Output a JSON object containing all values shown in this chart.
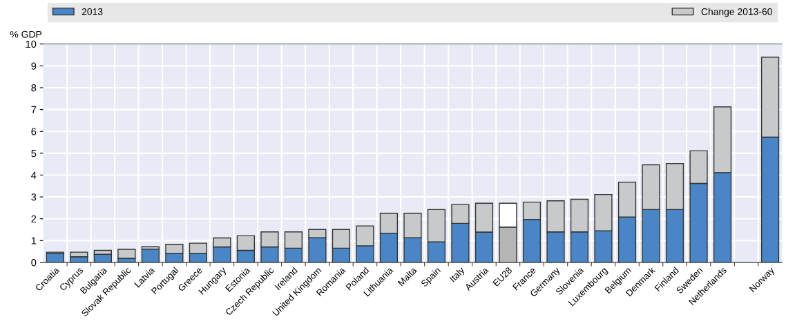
{
  "chart_data": {
    "type": "bar",
    "stacked": true,
    "ylabel": "% GDP",
    "categories": [
      "Croatia",
      "Cyprus",
      "Bulgaria",
      "Slovak Republic",
      "Latvia",
      "Portugal",
      "Greece",
      "Hungary",
      "Estonia",
      "Czech Republic",
      "Ireland",
      "United Kingdom",
      "Romania",
      "Poland",
      "Lithuania",
      "Malta",
      "Spain",
      "Italy",
      "Austria",
      "EU28",
      "France",
      "Germany",
      "Slovenia",
      "Luxembourg",
      "Belgium",
      "Denmark",
      "Finland",
      "Sweden",
      "Netherlands",
      null,
      "Norway"
    ],
    "series": [
      {
        "name": "2013",
        "color": "#4a86c5",
        "colors": [
          "#4a86c5",
          "#4a86c5",
          "#4a86c5",
          "#4a86c5",
          "#4a86c5",
          "#4a86c5",
          "#4a86c5",
          "#4a86c5",
          "#4a86c5",
          "#4a86c5",
          "#4a86c5",
          "#4a86c5",
          "#4a86c5",
          "#4a86c5",
          "#4a86c5",
          "#4a86c5",
          "#4a86c5",
          "#4a86c5",
          "#4a86c5",
          "#b5b5b5",
          "#4a86c5",
          "#4a86c5",
          "#4a86c5",
          "#4a86c5",
          "#4a86c5",
          "#4a86c5",
          "#4a86c5",
          "#4a86c5",
          "#4a86c5",
          "#4a86c5",
          "#4a86c5"
        ],
        "values": [
          0.42,
          0.26,
          0.37,
          0.19,
          0.61,
          0.42,
          0.42,
          0.71,
          0.55,
          0.71,
          0.65,
          1.13,
          0.65,
          0.76,
          1.34,
          1.13,
          0.94,
          1.79,
          1.39,
          1.62,
          1.97,
          1.4,
          1.4,
          1.45,
          2.08,
          2.42,
          2.42,
          3.62,
          4.11,
          null,
          5.74
        ]
      },
      {
        "name": "Change 2013-60",
        "color": "#c8c9cb",
        "colors": [
          "#c8c9cb",
          "#c8c9cb",
          "#c8c9cb",
          "#c8c9cb",
          "#c8c9cb",
          "#c8c9cb",
          "#c8c9cb",
          "#c8c9cb",
          "#c8c9cb",
          "#c8c9cb",
          "#c8c9cb",
          "#c8c9cb",
          "#c8c9cb",
          "#c8c9cb",
          "#c8c9cb",
          "#c8c9cb",
          "#c8c9cb",
          "#c8c9cb",
          "#c8c9cb",
          "#ffffff",
          "#c8c9cb",
          "#c8c9cb",
          "#c8c9cb",
          "#c8c9cb",
          "#c8c9cb",
          "#c8c9cb",
          "#c8c9cb",
          "#c8c9cb",
          "#c8c9cb",
          "#c8c9cb",
          "#c8c9cb"
        ],
        "values": [
          0.05,
          0.21,
          0.18,
          0.41,
          0.11,
          0.41,
          0.46,
          0.41,
          0.67,
          0.69,
          0.75,
          0.38,
          0.86,
          0.91,
          0.91,
          1.12,
          1.48,
          0.86,
          1.32,
          1.09,
          0.79,
          1.42,
          1.49,
          1.66,
          1.59,
          2.05,
          2.11,
          1.49,
          3.01,
          null,
          3.66
        ]
      }
    ],
    "ylim": [
      0,
      10
    ],
    "yticks": [
      0,
      1,
      2,
      3,
      4,
      5,
      6,
      7,
      8,
      9,
      10
    ],
    "grid": true,
    "legend": "top"
  }
}
